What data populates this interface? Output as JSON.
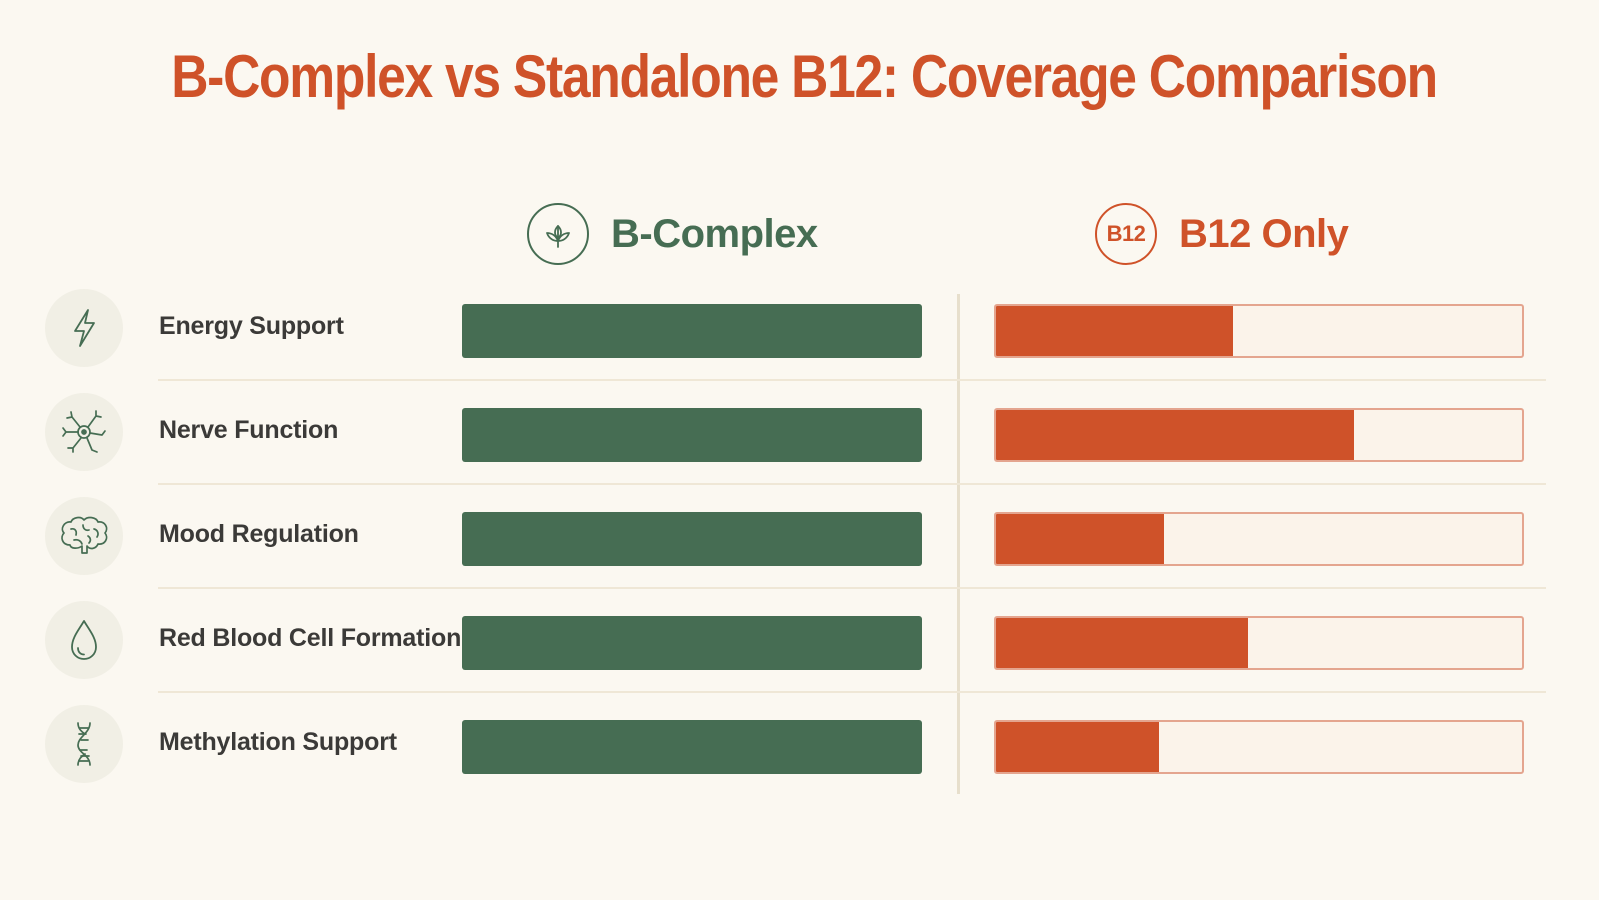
{
  "title": "B-Complex vs Standalone B12: Coverage Comparison",
  "colors": {
    "title": "#cf5229",
    "b_complex": "#466d53",
    "b12": "#cf5229",
    "b12_track": "#fbf3ea",
    "background": "#fbf8f1"
  },
  "columns": {
    "b_complex": {
      "label": "B-Complex",
      "icon": "leaf-icon"
    },
    "b12": {
      "label": "B12 Only",
      "badge_text": "B12"
    }
  },
  "chart_data": {
    "type": "bar",
    "categories": [
      "Energy Support",
      "Nerve Function",
      "Mood Regulation",
      "Red Blood Cell Formation",
      "Methylation Support"
    ],
    "category_icons": [
      "lightning-icon",
      "neuron-icon",
      "brain-icon",
      "blood-drop-icon",
      "dna-icon"
    ],
    "series": [
      {
        "name": "B-Complex",
        "values": [
          100,
          100,
          100,
          100,
          100
        ]
      },
      {
        "name": "B12 Only",
        "values": [
          45,
          68,
          32,
          48,
          31
        ]
      }
    ],
    "ylim": [
      0,
      100
    ],
    "xlabel": "",
    "ylabel": ""
  }
}
